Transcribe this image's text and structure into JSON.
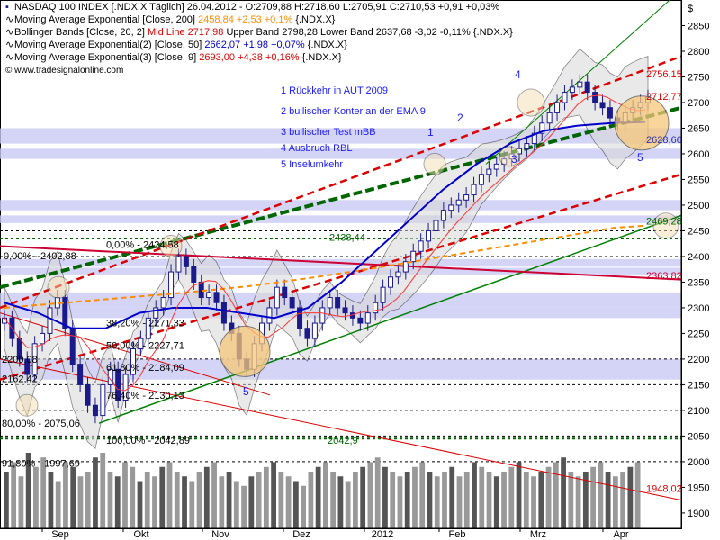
{
  "header": {
    "line1": "NASDAQ 100 INDEX [.NDX.X  Täglich] 26.04.2012 - O:2709,88 H:2718,60 L:2705,91 C:2710,53 +0,91 +0,03%",
    "line2_name": "Moving Average Exponential [Close, 200]",
    "line2_val": "2458,84 +2,53 +0,1%",
    "line2_sym": "{.NDX.X}",
    "line3_name": "Bollinger Bands [Close, 20, 2]",
    "line3_mid": "Mid Line 2717,98",
    "line3_rest": "Upper Band 2798,28 Lower Band 2637,68 -3,02 -0,11% {.NDX.X}",
    "line4_name": "Moving Average Exponential(2) [Close, 50]",
    "line4_val": "2662,07 +1,98 +0,07%",
    "line4_sym": "{.NDX.X}",
    "line5_name": "Moving Average Exponential(3) [Close, 9]",
    "line5_val": "2693,00 +4,38 +0,16%",
    "line5_sym": "{.NDX.X}",
    "copyright": "© www.tradesignalonline.com"
  },
  "annotations": {
    "items": [
      "1 Rückkehr in AUT 2009",
      "2 bullischer Konter an der EMA 9",
      "3 bullischer Test mBB",
      "4 Ausbruch RBL",
      "5 Inselumkehr"
    ],
    "markers": [
      "1",
      "2",
      "3",
      "4",
      "5",
      "5"
    ]
  },
  "colors": {
    "candle": "#1a1a8c",
    "ema200": "#ff8c00",
    "ema50": "#0000cc",
    "ema9": "#ff0000",
    "bollinger": "#222222",
    "trend_green": "#008000",
    "trend_red": "#dd0000",
    "fib_band": "#9999ee",
    "volume": "#888888"
  },
  "chart_data": {
    "type": "candlestick",
    "title": "NASDAQ 100 INDEX [.NDX.X Täglich]",
    "y_axis_label": "$",
    "ylim": [
      1870,
      2900
    ],
    "y_ticks": [
      1900,
      1950,
      2000,
      2050,
      2100,
      2150,
      2200,
      2250,
      2300,
      2350,
      2400,
      2450,
      2500,
      2550,
      2600,
      2650,
      2700,
      2750,
      2800,
      2850
    ],
    "x_ticks": [
      "Sep",
      "Okt",
      "Nov",
      "Dez",
      "2012",
      "Feb",
      "Mrz",
      "Apr"
    ],
    "price_labels": [
      "2756,15",
      "2712,77",
      "2628,66",
      "2469,28",
      "2363,82",
      "1948,02",
      "2438,44",
      "2042,9"
    ],
    "fib_labels": [
      "0,00% - 2402,88",
      "0,00% - 2424,58",
      "38,20% - 2271,33",
      "50,00% - 2227,71",
      "61,80% - 2184,09",
      "76,40% - 2130,13",
      "100,00% - 2042,89",
      "80,00% - 2075,06",
      "91,80% - 1997,69",
      "2200,08",
      "2162,42"
    ],
    "close_series": [
      2280,
      2240,
      2200,
      2170,
      2230,
      2250,
      2300,
      2320,
      2260,
      2190,
      2150,
      2110,
      2090,
      2150,
      2180,
      2120,
      2170,
      2220,
      2240,
      2280,
      2300,
      2320,
      2370,
      2400,
      2380,
      2350,
      2320,
      2330,
      2310,
      2270,
      2250,
      2200,
      2180,
      2230,
      2270,
      2300,
      2340,
      2320,
      2300,
      2260,
      2240,
      2270,
      2300,
      2320,
      2300,
      2290,
      2280,
      2270,
      2290,
      2310,
      2340,
      2360,
      2370,
      2390,
      2410,
      2430,
      2450,
      2470,
      2490,
      2500,
      2510,
      2520,
      2540,
      2560,
      2570,
      2580,
      2590,
      2600,
      2610,
      2620,
      2640,
      2660,
      2680,
      2700,
      2720,
      2730,
      2740,
      2720,
      2700,
      2690,
      2670,
      2660,
      2680,
      2690,
      2700,
      2710
    ],
    "ema200": [
      2300,
      2305,
      2310,
      2315,
      2320,
      2325,
      2330,
      2336,
      2342,
      2350,
      2358,
      2367,
      2376,
      2386,
      2396,
      2406,
      2416,
      2426,
      2436,
      2446,
      2456,
      2460
    ],
    "ema50": [
      2310,
      2290,
      2260,
      2260,
      2290,
      2300,
      2300,
      2290,
      2280,
      2300,
      2350,
      2410,
      2470,
      2530,
      2580,
      2620,
      2645,
      2655,
      2660,
      2662
    ],
    "volume": [
      60,
      70,
      55,
      80,
      65,
      75,
      60,
      50,
      70,
      65,
      55,
      60,
      75,
      80,
      60,
      55,
      70,
      65,
      50,
      60,
      55,
      65,
      70,
      60,
      55,
      50,
      60,
      65,
      70,
      55,
      60,
      50,
      45,
      55,
      60,
      65,
      70,
      60,
      55,
      50,
      45,
      60,
      65,
      70,
      60,
      55,
      50,
      60,
      65,
      70,
      75,
      65,
      60,
      55,
      60,
      65,
      70,
      60,
      55,
      60,
      65,
      55,
      60,
      70,
      65,
      60,
      55,
      60,
      65,
      70,
      60,
      55,
      60,
      65,
      70,
      75,
      60,
      55,
      60,
      65,
      70,
      60,
      55,
      60,
      65,
      70
    ]
  }
}
